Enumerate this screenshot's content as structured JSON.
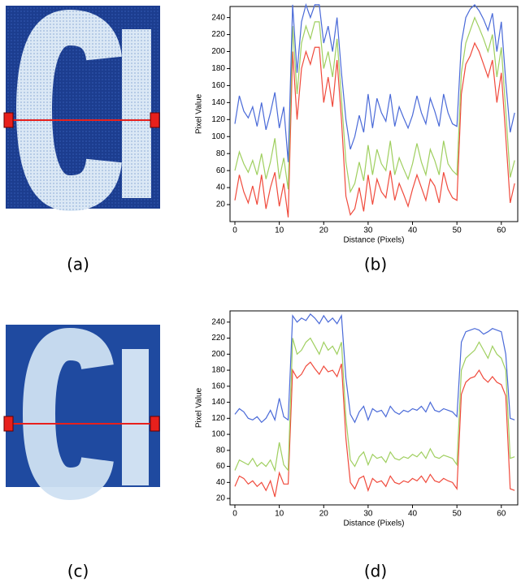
{
  "panel_labels": {
    "a": "(a)",
    "c": "(c)"
  },
  "chart_data": [
    {
      "type": "line",
      "label": "(b)",
      "xlabel": "Distance (Pixels)",
      "ylabel": "Pixel Value",
      "x": [
        0,
        1,
        2,
        3,
        4,
        5,
        6,
        7,
        8,
        9,
        10,
        11,
        12,
        13,
        14,
        15,
        16,
        17,
        18,
        19,
        20,
        21,
        22,
        23,
        24,
        25,
        26,
        27,
        28,
        29,
        30,
        31,
        32,
        33,
        34,
        35,
        36,
        37,
        38,
        39,
        40,
        41,
        42,
        43,
        44,
        45,
        46,
        47,
        48,
        49,
        50,
        51,
        52,
        53,
        54,
        55,
        56,
        57,
        58,
        59,
        60,
        61,
        62,
        63
      ],
      "xlim": [
        -1.1,
        63.7
      ],
      "ylim": [
        0,
        253
      ],
      "xticks": [
        0,
        10,
        20,
        30,
        40,
        50,
        60
      ],
      "yticks": [
        20,
        40,
        60,
        80,
        100,
        120,
        140,
        160,
        180,
        200,
        220,
        240
      ],
      "grid": false,
      "series": [
        {
          "color": "#4a6ad8",
          "values": [
            115,
            148,
            130,
            122,
            135,
            112,
            140,
            108,
            128,
            152,
            110,
            135,
            70,
            255,
            175,
            235,
            255,
            240,
            255,
            255,
            210,
            230,
            200,
            240,
            175,
            120,
            85,
            100,
            125,
            105,
            150,
            110,
            145,
            128,
            118,
            150,
            112,
            135,
            122,
            110,
            125,
            148,
            128,
            115,
            145,
            130,
            112,
            150,
            128,
            115,
            112,
            210,
            240,
            250,
            255,
            248,
            238,
            225,
            245,
            200,
            235,
            165,
            105,
            128
          ]
        },
        {
          "color": "#9fcf5f",
          "values": [
            60,
            82,
            68,
            58,
            72,
            55,
            80,
            50,
            70,
            98,
            50,
            75,
            38,
            230,
            150,
            210,
            230,
            215,
            235,
            235,
            180,
            200,
            170,
            215,
            145,
            70,
            35,
            45,
            70,
            48,
            90,
            55,
            85,
            68,
            60,
            95,
            55,
            75,
            62,
            50,
            68,
            92,
            70,
            55,
            85,
            72,
            55,
            95,
            68,
            60,
            55,
            175,
            210,
            225,
            240,
            228,
            215,
            200,
            220,
            170,
            205,
            130,
            52,
            72
          ]
        },
        {
          "color": "#f04a3c",
          "values": [
            25,
            55,
            35,
            22,
            42,
            20,
            55,
            15,
            40,
            58,
            18,
            45,
            5,
            200,
            120,
            180,
            200,
            185,
            205,
            205,
            140,
            170,
            135,
            190,
            120,
            30,
            8,
            15,
            40,
            12,
            55,
            20,
            50,
            35,
            28,
            60,
            25,
            45,
            32,
            18,
            38,
            55,
            40,
            25,
            50,
            42,
            22,
            58,
            38,
            28,
            25,
            150,
            185,
            195,
            210,
            200,
            185,
            170,
            190,
            140,
            175,
            100,
            22,
            45
          ]
        }
      ]
    },
    {
      "type": "line",
      "label": "(d)",
      "xlabel": "Distance (Pixels)",
      "ylabel": "Pixel Value",
      "x": [
        0,
        1,
        2,
        3,
        4,
        5,
        6,
        7,
        8,
        9,
        10,
        11,
        12,
        13,
        14,
        15,
        16,
        17,
        18,
        19,
        20,
        21,
        22,
        23,
        24,
        25,
        26,
        27,
        28,
        29,
        30,
        31,
        32,
        33,
        34,
        35,
        36,
        37,
        38,
        39,
        40,
        41,
        42,
        43,
        44,
        45,
        46,
        47,
        48,
        49,
        50,
        51,
        52,
        53,
        54,
        55,
        56,
        57,
        58,
        59,
        60,
        61,
        62,
        63
      ],
      "xlim": [
        -1.1,
        63.7
      ],
      "ylim": [
        12,
        254
      ],
      "xticks": [
        0,
        10,
        20,
        30,
        40,
        50,
        60
      ],
      "yticks": [
        20,
        40,
        60,
        80,
        100,
        120,
        140,
        160,
        180,
        200,
        220,
        240
      ],
      "grid": false,
      "series": [
        {
          "color": "#4a6ad8",
          "values": [
            125,
            132,
            128,
            120,
            118,
            122,
            115,
            120,
            130,
            118,
            145,
            122,
            118,
            248,
            240,
            245,
            242,
            250,
            245,
            238,
            248,
            240,
            245,
            238,
            248,
            170,
            125,
            115,
            128,
            135,
            118,
            132,
            128,
            130,
            122,
            135,
            128,
            125,
            130,
            128,
            132,
            130,
            135,
            128,
            140,
            130,
            128,
            132,
            130,
            128,
            122,
            215,
            228,
            230,
            232,
            230,
            225,
            228,
            232,
            230,
            228,
            200,
            120,
            118
          ]
        },
        {
          "color": "#9fcf5f",
          "values": [
            55,
            68,
            65,
            62,
            70,
            60,
            65,
            60,
            68,
            55,
            90,
            62,
            55,
            220,
            200,
            205,
            215,
            220,
            210,
            200,
            215,
            205,
            210,
            200,
            215,
            120,
            68,
            60,
            72,
            78,
            62,
            75,
            70,
            72,
            65,
            78,
            70,
            68,
            72,
            70,
            75,
            72,
            78,
            70,
            82,
            72,
            70,
            74,
            72,
            70,
            62,
            180,
            195,
            200,
            205,
            215,
            205,
            195,
            210,
            200,
            195,
            180,
            70,
            72
          ]
        },
        {
          "color": "#f04a3c",
          "values": [
            35,
            48,
            45,
            38,
            42,
            35,
            40,
            30,
            42,
            22,
            52,
            38,
            38,
            180,
            170,
            175,
            185,
            190,
            182,
            175,
            185,
            178,
            180,
            172,
            188,
            95,
            40,
            32,
            45,
            48,
            30,
            45,
            40,
            42,
            35,
            48,
            40,
            38,
            42,
            40,
            45,
            42,
            48,
            40,
            50,
            42,
            40,
            45,
            42,
            40,
            32,
            150,
            165,
            170,
            172,
            180,
            170,
            165,
            172,
            165,
            162,
            148,
            32,
            30
          ]
        }
      ]
    }
  ]
}
